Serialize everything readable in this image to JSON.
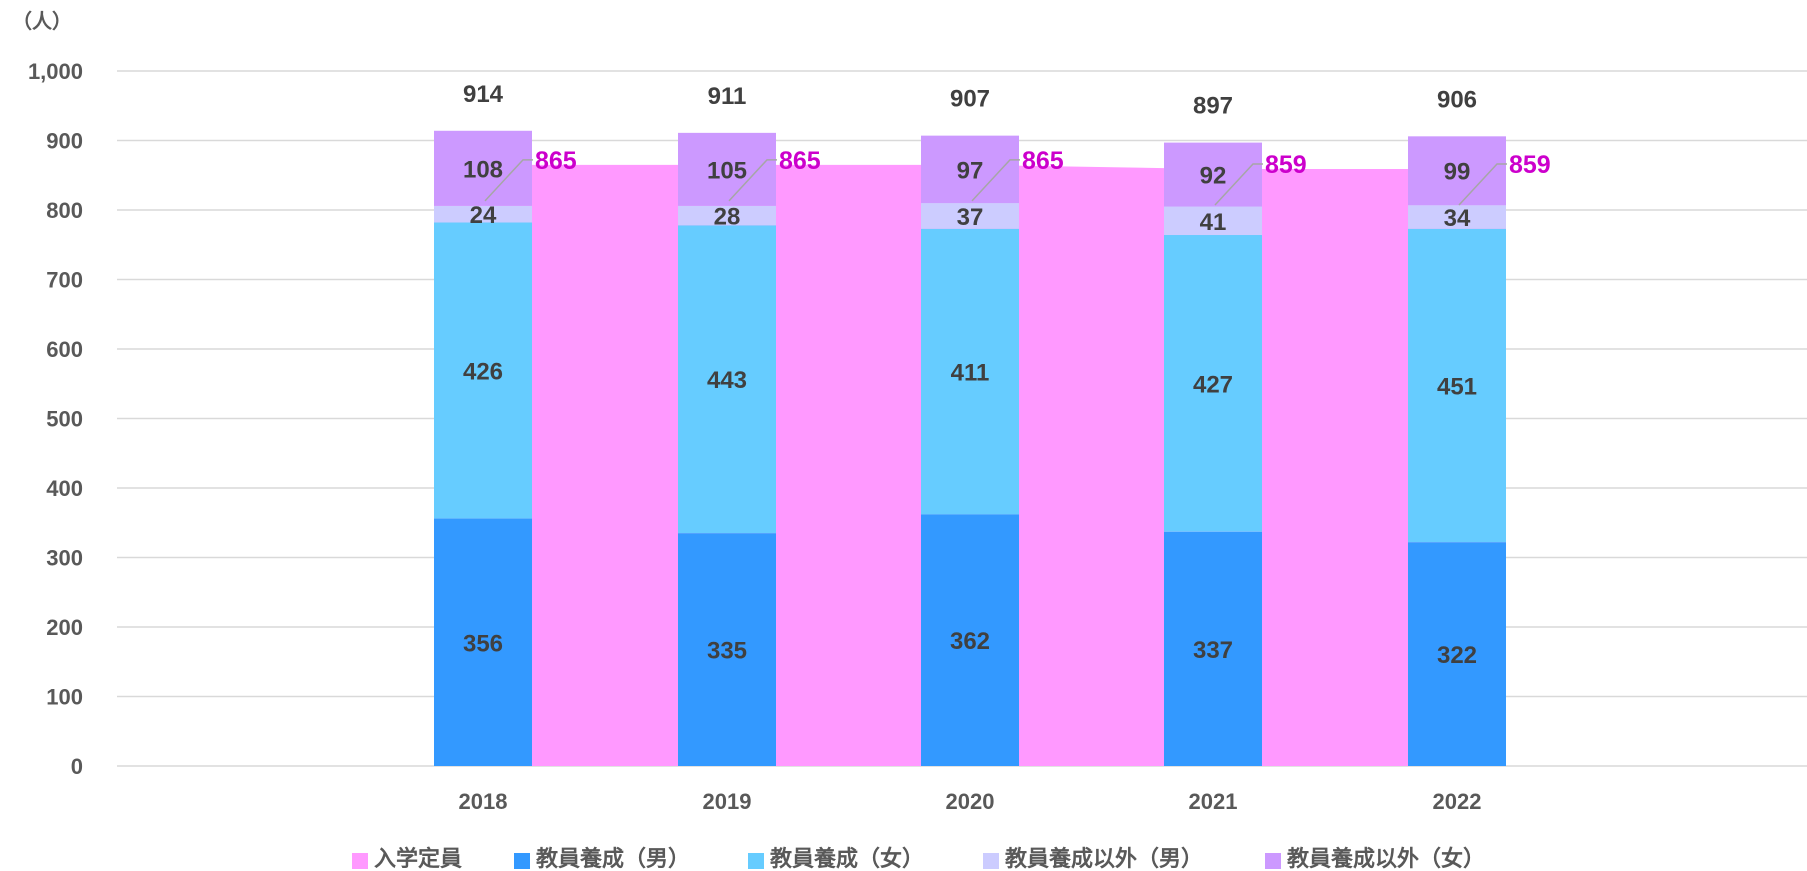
{
  "chart_data": {
    "type": "bar",
    "stacked": true,
    "unit_label": "（人）",
    "categories": [
      "2018",
      "2019",
      "2020",
      "2021",
      "2022"
    ],
    "ylim": [
      0,
      1000
    ],
    "yticks": [
      "0",
      "100",
      "200",
      "300",
      "400",
      "500",
      "600",
      "700",
      "800",
      "900",
      "1,000"
    ],
    "grid": true,
    "legend_position": "bottom",
    "series": [
      {
        "name": "教員養成（男）",
        "color": "#3399ff",
        "values": [
          356,
          335,
          362,
          337,
          322
        ]
      },
      {
        "name": "教員養成（女）",
        "color": "#66ccff",
        "values": [
          426,
          443,
          411,
          427,
          451
        ]
      },
      {
        "name": "教員養成以外（男）",
        "color": "#ccccff",
        "values": [
          24,
          28,
          37,
          41,
          34
        ]
      },
      {
        "name": "教員養成以外（女）",
        "color": "#cc99ff",
        "values": [
          108,
          105,
          97,
          92,
          99
        ]
      }
    ],
    "totals": [
      914,
      911,
      907,
      897,
      906
    ],
    "capacity": {
      "name": "入学定員",
      "type": "area",
      "color": "#ff99ff",
      "label_color": "#cc00cc",
      "values": [
        865,
        865,
        865,
        859,
        859
      ]
    },
    "legend_order": [
      "入学定員",
      "教員養成（男）",
      "教員養成（女）",
      "教員養成以外（男）",
      "教員養成以外（女）"
    ]
  }
}
